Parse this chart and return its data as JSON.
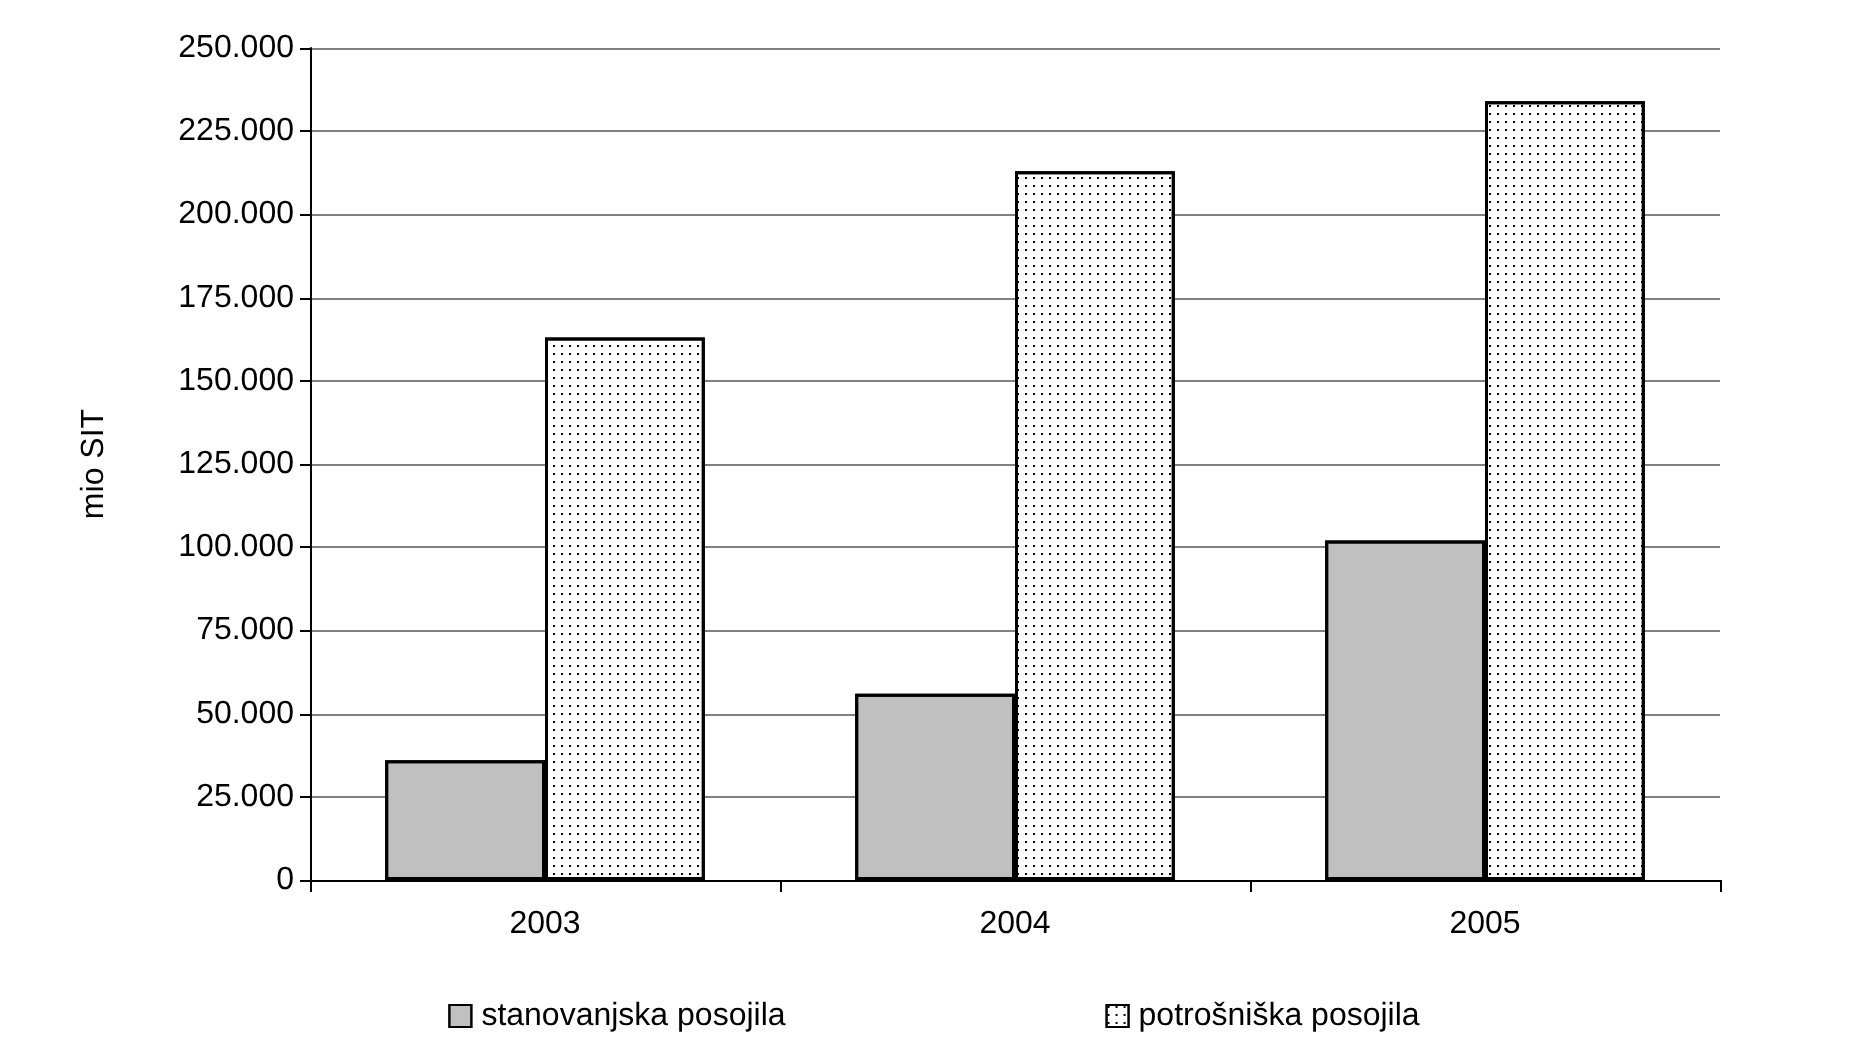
{
  "chart_data": {
    "type": "bar",
    "ylabel": "mio SIT",
    "categories": [
      "2003",
      "2004",
      "2005"
    ],
    "series": [
      {
        "name": "stanovanjska posojila",
        "color": "#c0c0c0",
        "values": [
          36000,
          56000,
          102000
        ]
      },
      {
        "name": "potrošniška posojila",
        "color": "#ffffff",
        "values": [
          163000,
          213000,
          234000
        ]
      }
    ],
    "ylim": [
      0,
      250000
    ],
    "yticks": [
      {
        "value": 0,
        "label": "0"
      },
      {
        "value": 25000,
        "label": "25.000"
      },
      {
        "value": 50000,
        "label": "50.000"
      },
      {
        "value": 75000,
        "label": "75.000"
      },
      {
        "value": 100000,
        "label": "100.000"
      },
      {
        "value": 125000,
        "label": "125.000"
      },
      {
        "value": 150000,
        "label": "150.000"
      },
      {
        "value": 175000,
        "label": "175.000"
      },
      {
        "value": 200000,
        "label": "200.000"
      },
      {
        "value": 225000,
        "label": "225.000"
      },
      {
        "value": 250000,
        "label": "250.000"
      }
    ],
    "grid": "y",
    "legend": "bottom"
  }
}
